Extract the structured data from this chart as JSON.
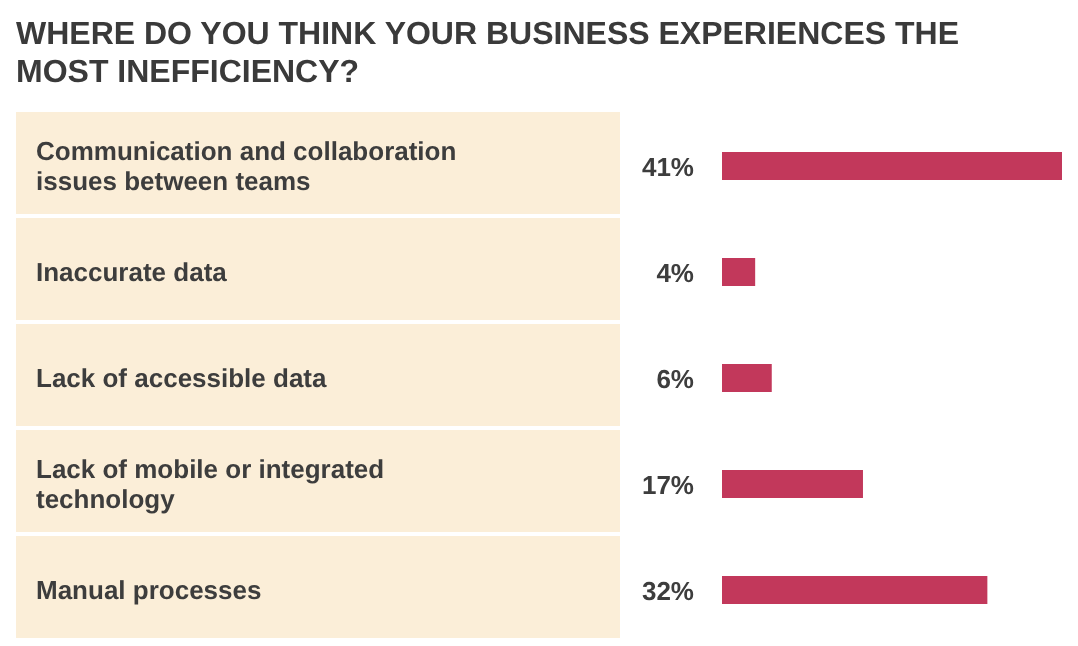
{
  "chart_data": {
    "type": "bar",
    "orientation": "horizontal",
    "title": "WHERE DO YOU THINK YOUR BUSINESS EXPERIENCES THE MOST INEFFICIENCY?",
    "categories": [
      "Communication and collaboration issues between teams",
      "Inaccurate data",
      "Lack of accessible data",
      "Lack of mobile or integrated technology",
      "Manual processes"
    ],
    "values": [
      41,
      4,
      6,
      17,
      32
    ],
    "value_labels": [
      "41%",
      "4%",
      "6%",
      "17%",
      "32%"
    ],
    "color": "#c2385b"
  }
}
